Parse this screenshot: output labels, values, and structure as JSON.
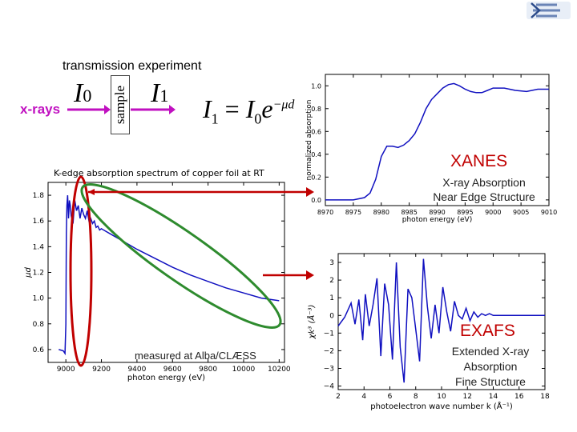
{
  "title": "transmission experiment",
  "beam_label": "x-rays",
  "sample_label": "sample",
  "i0": {
    "symbol": "I",
    "sub": "0"
  },
  "i1": {
    "symbol": "I",
    "sub": "1"
  },
  "equation": {
    "lhs": "I",
    "lhs_sub": "1",
    "eq": " = ",
    "rhs": "I",
    "rhs_sub": "0",
    "base": "e",
    "exponent": "−μd"
  },
  "xanes": {
    "title": "XANES",
    "line1": "X-ray Absorption",
    "line2": "Near Edge Structure"
  },
  "exafs": {
    "title": "EXAFS",
    "line1": "Extended X-ray",
    "line2": "Absorption",
    "line3": "Fine Structure"
  },
  "measured_note": "measured at Alba/CLÆSS",
  "colors": {
    "beam": "#c010c0",
    "highlight": "#c00000",
    "curve": "#1010c0",
    "green": "#2e8b2e",
    "red": "#c00000"
  },
  "chart_data": [
    {
      "type": "line",
      "title": "K-edge absorption spectrum of copper foil at RT",
      "xlabel": "photon energy (eV)",
      "ylabel": "μd",
      "xticks": [
        "9000",
        "9200",
        "9400",
        "9600",
        "9800",
        "10000",
        "10200"
      ],
      "yticks": [
        "0.6",
        "0.8",
        "1.0",
        "1.2",
        "1.4",
        "1.6",
        "1.8"
      ],
      "xlim": [
        8900,
        10230
      ],
      "ylim": [
        0.5,
        1.9
      ],
      "series": [
        {
          "x": [
            8960,
            8985,
            8990,
            8995,
            9000,
            9003,
            9006,
            9010,
            9015,
            9020,
            9025,
            9030,
            9040,
            9050,
            9060,
            9070,
            9080,
            9090,
            9100,
            9110,
            9120,
            9130,
            9140,
            9150,
            9160,
            9170,
            9180,
            9190,
            9200,
            9250,
            9300,
            9350,
            9400,
            9500,
            9600,
            9700,
            9800,
            9900,
            10000,
            10100,
            10200
          ],
          "y": [
            0.6,
            0.59,
            0.58,
            0.57,
            0.8,
            1.5,
            1.72,
            1.8,
            1.62,
            1.76,
            1.72,
            1.64,
            1.58,
            1.76,
            1.68,
            1.72,
            1.62,
            1.7,
            1.65,
            1.62,
            1.68,
            1.6,
            1.62,
            1.58,
            1.6,
            1.55,
            1.56,
            1.53,
            1.54,
            1.5,
            1.46,
            1.42,
            1.38,
            1.31,
            1.24,
            1.18,
            1.13,
            1.08,
            1.04,
            1.0,
            0.98
          ]
        }
      ]
    },
    {
      "type": "line",
      "ylabel": "normalized absorption",
      "xlabel": "photon energy (eV)",
      "xticks": [
        "8970",
        "8975",
        "8980",
        "8985",
        "8990",
        "8995",
        "9000",
        "9005",
        "9010"
      ],
      "yticks": [
        "0.0",
        "0.2",
        "0.4",
        "0.6",
        "0.8",
        "1.0"
      ],
      "xlim": [
        8970,
        9010
      ],
      "ylim": [
        -0.05,
        1.1
      ],
      "series": [
        {
          "x": [
            8970,
            8975,
            8977,
            8978,
            8979,
            8980,
            8981,
            8982,
            8983,
            8984,
            8985,
            8986,
            8987,
            8988,
            8989,
            8990,
            8991,
            8992,
            8993,
            8994,
            8995,
            8996,
            8997,
            8998,
            8999,
            9000,
            9002,
            9004,
            9006,
            9008,
            9010
          ],
          "y": [
            0.0,
            0.0,
            0.02,
            0.06,
            0.18,
            0.38,
            0.47,
            0.47,
            0.46,
            0.48,
            0.52,
            0.58,
            0.68,
            0.8,
            0.88,
            0.93,
            0.98,
            1.01,
            1.02,
            1.0,
            0.97,
            0.95,
            0.94,
            0.94,
            0.96,
            0.98,
            0.98,
            0.96,
            0.95,
            0.97,
            0.97
          ]
        }
      ]
    },
    {
      "type": "line",
      "xlabel": "photoelectron wave number k (Å⁻¹)",
      "ylabel": "χk³ (Å⁻³)",
      "xticks": [
        "2",
        "4",
        "6",
        "8",
        "10",
        "12",
        "14",
        "16",
        "18"
      ],
      "yticks": [
        "−4",
        "−3",
        "−2",
        "−1",
        "0",
        "1",
        "2",
        "3"
      ],
      "xlim": [
        2,
        18
      ],
      "ylim": [
        -4.2,
        3.5
      ],
      "series": [
        {
          "x": [
            2.0,
            2.5,
            3.0,
            3.3,
            3.6,
            3.9,
            4.1,
            4.4,
            4.7,
            5.0,
            5.3,
            5.6,
            5.9,
            6.2,
            6.5,
            6.8,
            7.1,
            7.4,
            7.7,
            8.0,
            8.3,
            8.6,
            8.9,
            9.2,
            9.5,
            9.8,
            10.1,
            10.4,
            10.7,
            11.0,
            11.3,
            11.6,
            11.9,
            12.2,
            12.5,
            12.8,
            13.1,
            13.4,
            13.7,
            14.0,
            14.5,
            15.0,
            15.5,
            16.0,
            16.5,
            17.0,
            17.5,
            18.0
          ],
          "y": [
            -0.6,
            -0.1,
            0.7,
            -0.5,
            0.9,
            -1.4,
            1.2,
            -0.6,
            0.6,
            2.1,
            -2.3,
            1.8,
            0.6,
            -2.5,
            3.0,
            -1.8,
            -3.8,
            1.5,
            1.0,
            -0.8,
            -2.6,
            3.2,
            0.5,
            -1.3,
            0.6,
            -1.0,
            1.6,
            0.2,
            -0.9,
            0.8,
            0.0,
            -0.2,
            0.4,
            -0.3,
            0.2,
            -0.1,
            0.1,
            0.0,
            0.1,
            0.0,
            0.0,
            0.0,
            0.0,
            0.0,
            0.0,
            0.0,
            0.0,
            0.0
          ]
        }
      ]
    }
  ]
}
